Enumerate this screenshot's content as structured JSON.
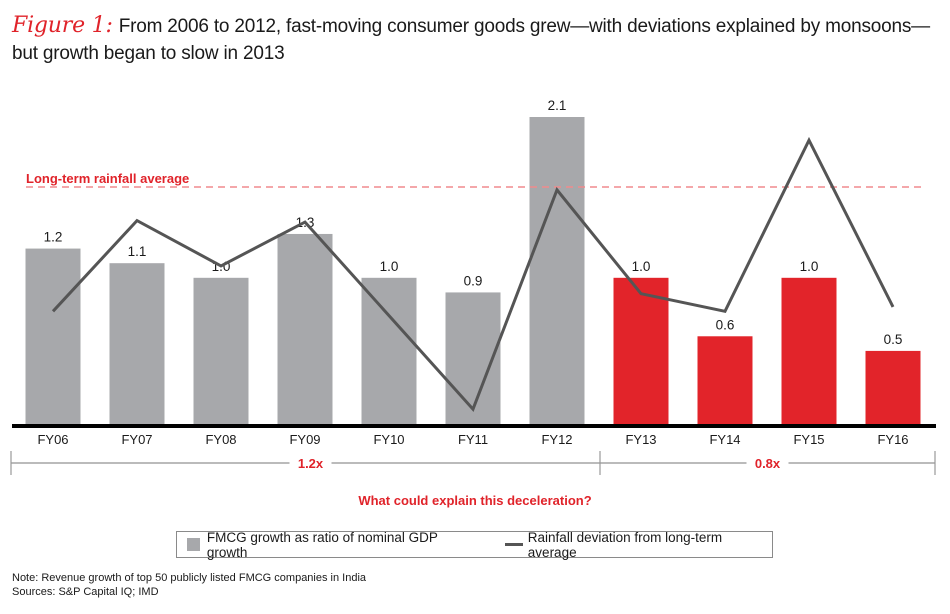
{
  "title": {
    "figure_label": "Figure 1:",
    "text": "From 2006 to 2012, fast-moving consumer goods grew—with deviations explained by monsoons—but growth began to slow in 2013"
  },
  "colors": {
    "bar_early": "#a7a8ab",
    "bar_late": "#e2242a",
    "rainfall_line": "#555555",
    "average_line": "#f08a8d",
    "accent_red": "#e0232a",
    "axis": "#000000"
  },
  "chart_data": {
    "type": "bar",
    "categories": [
      "FY06",
      "FY07",
      "FY08",
      "FY09",
      "FY10",
      "FY11",
      "FY12",
      "FY13",
      "FY14",
      "FY15",
      "FY16"
    ],
    "series": [
      {
        "name": "FMCG growth as ratio of nominal GDP growth",
        "type": "bar",
        "values": [
          1.2,
          1.1,
          1.0,
          1.3,
          1.0,
          0.9,
          2.1,
          1.0,
          0.6,
          1.0,
          0.5
        ],
        "labels": [
          "1.2",
          "1.1",
          "1.0",
          "1.3",
          "1.0",
          "0.9",
          "2.1",
          "1.0",
          "0.6",
          "1.0",
          "0.5"
        ],
        "highlight_from_index": 7
      },
      {
        "name": "Rainfall deviation from long-term average",
        "type": "line",
        "note": "relative units estimated visually; 0 = long-term rainfall average",
        "values": [
          -0.85,
          -0.23,
          -0.54,
          -0.24,
          -0.88,
          -1.52,
          -0.02,
          -0.73,
          -0.85,
          0.32,
          -0.82
        ]
      }
    ],
    "reference_line": {
      "label": "Long-term rainfall average",
      "value": 0
    },
    "periods": [
      {
        "label": "1.2x",
        "from": "FY06",
        "to": "FY12"
      },
      {
        "label": "0.8x",
        "from": "FY13",
        "to": "FY16"
      }
    ],
    "annotation": "What could explain this deceleration?",
    "xlabel": "",
    "ylabel": "",
    "ylim": [
      0,
      2.1
    ],
    "grid": false,
    "legend_position": "bottom-center"
  },
  "legend": {
    "bar_label": "FMCG growth as ratio of nominal GDP growth",
    "line_label": "Rainfall deviation from long-term average"
  },
  "footer": {
    "note": "Note: Revenue growth of top 50 publicly listed FMCG companies in India",
    "sources": "Sources: S&P Capital IQ; IMD"
  }
}
